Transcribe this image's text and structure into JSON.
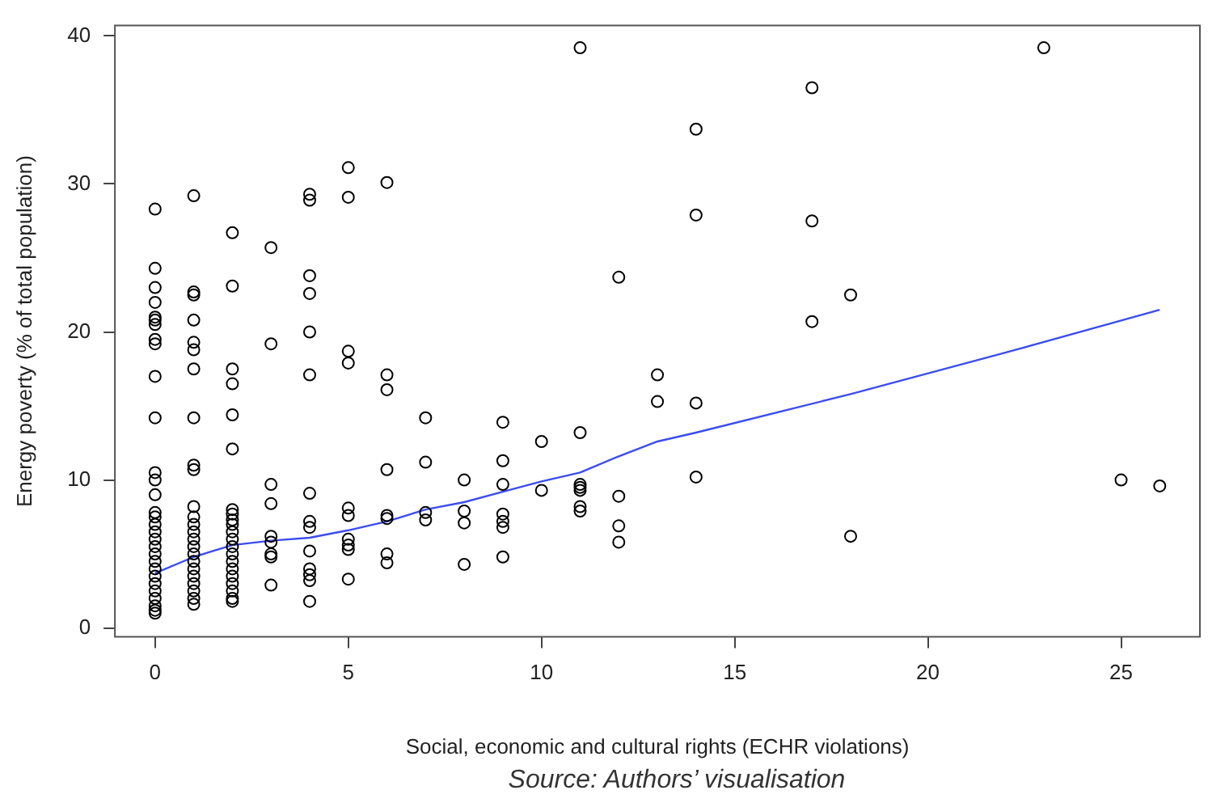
{
  "chart_data": {
    "type": "scatter",
    "xlabel": "Social, economic and cultural rights (ECHR violations)",
    "ylabel": "Energy poverty (% of total population)",
    "annotations": [
      "Source: Authors’ visualisation"
    ],
    "xlim": [
      -1.04,
      27.04
    ],
    "ylim": [
      -0.6,
      40.7
    ],
    "xticks": [
      0,
      5,
      10,
      15,
      20,
      25
    ],
    "yticks": [
      0,
      10,
      20,
      30,
      40
    ],
    "grid": false,
    "legend": false,
    "marker": "circle",
    "series": [
      {
        "color": "#000000",
        "x": [
          0,
          0,
          0,
          0,
          0,
          0,
          0,
          0,
          0,
          0,
          0,
          0,
          0,
          0,
          0,
          0,
          0,
          0,
          0,
          0,
          0,
          0,
          0,
          0,
          0,
          0,
          0,
          0,
          0,
          0,
          1,
          1,
          1,
          1,
          1,
          1,
          1,
          1,
          1,
          1,
          1,
          1,
          1,
          1,
          1,
          1,
          1,
          1,
          1,
          1,
          1,
          1,
          1,
          1,
          2,
          2,
          2,
          2,
          2,
          2,
          2,
          2,
          2,
          2,
          2,
          2,
          2,
          2,
          2,
          2,
          2,
          2,
          2,
          2,
          2,
          3,
          3,
          3,
          3,
          3,
          3,
          3,
          3,
          3,
          4,
          4,
          4,
          4,
          4,
          4,
          4,
          4,
          4,
          4,
          4,
          4,
          4,
          4,
          5,
          5,
          5,
          5,
          5,
          5,
          5,
          5,
          5,
          5,
          6,
          6,
          6,
          6,
          6,
          6,
          6,
          6,
          7,
          7,
          7,
          7,
          8,
          8,
          8,
          8,
          9,
          9,
          9,
          9,
          9,
          9,
          9,
          10,
          10,
          11,
          11,
          11,
          11,
          11,
          11,
          11,
          12,
          12,
          12,
          12,
          13,
          13,
          14,
          14,
          14,
          14,
          17,
          17,
          17,
          18,
          18,
          23,
          25,
          26
        ],
        "values": [
          28.3,
          24.3,
          23,
          22,
          21,
          20.8,
          20.5,
          19.5,
          19.2,
          17,
          14.2,
          10.5,
          10,
          9,
          7.8,
          7.5,
          7,
          6.5,
          6,
          5.5,
          5,
          4.5,
          4,
          3.5,
          3,
          2.5,
          2,
          1.5,
          1.2,
          1,
          29.2,
          22.7,
          22.5,
          20.8,
          19.3,
          18.8,
          17.5,
          14.2,
          11,
          10.7,
          8.2,
          7.5,
          7,
          6.5,
          6,
          5.5,
          5,
          4.5,
          4,
          3.5,
          3,
          2.5,
          2,
          1.6,
          26.7,
          23.1,
          17.5,
          16.5,
          14.4,
          12.1,
          8,
          7.7,
          7.3,
          7,
          6.5,
          6,
          5.5,
          5,
          4.5,
          4,
          3.5,
          3,
          2.5,
          2,
          1.8,
          25.7,
          19.2,
          9.7,
          8.4,
          6.2,
          5.8,
          5,
          4.8,
          2.9,
          29.3,
          28.9,
          23.8,
          22.6,
          20,
          17.1,
          9.1,
          7.2,
          6.8,
          5.2,
          4,
          3.6,
          3.2,
          1.8,
          31.1,
          29.1,
          18.7,
          17.9,
          8.1,
          7.6,
          6,
          5.6,
          5.3,
          3.3,
          30.1,
          17.1,
          16.1,
          10.7,
          7.6,
          7.4,
          5,
          4.4,
          14.2,
          11.2,
          7.8,
          7.3,
          10,
          7.9,
          7.1,
          4.3,
          13.9,
          11.3,
          9.7,
          7.7,
          7.2,
          6.8,
          4.8,
          12.6,
          9.3,
          39.2,
          13.2,
          9.7,
          9.5,
          9.3,
          8.2,
          7.9,
          23.7,
          8.9,
          6.9,
          5.8,
          17.1,
          15.3,
          33.7,
          27.9,
          15.2,
          10.2,
          36.5,
          27.5,
          20.7,
          22.5,
          6.2,
          39.2,
          10,
          9.6
        ]
      },
      {
        "type": "line",
        "color": "#3b4cf0",
        "marker": "none",
        "x": [
          0,
          1,
          2,
          3,
          4,
          5,
          6,
          7,
          8,
          9,
          10,
          11,
          12,
          13,
          14,
          18,
          22,
          26
        ],
        "values": [
          3.7,
          4.8,
          5.6,
          5.9,
          6.1,
          6.6,
          7.2,
          8,
          8.5,
          9.2,
          9.9,
          10.5,
          11.6,
          12.6,
          13.2,
          15.8,
          18.6,
          21.5
        ]
      }
    ]
  }
}
